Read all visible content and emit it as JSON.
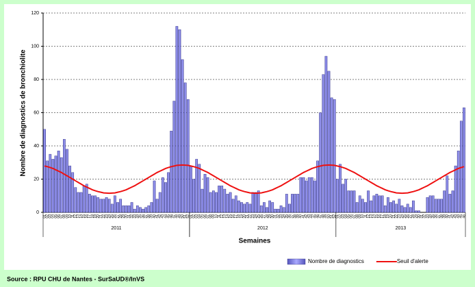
{
  "chart_data": {
    "type": "bar",
    "y_axis_label": "Nombre de diagnostics de bronchiolite",
    "x_axis_label": "Semaines",
    "source": "Source : RPU CHU de Nantes - SurSaUD®/InVS",
    "years": [
      "2011",
      "2012",
      "2013"
    ],
    "categories": [
      "01",
      "02",
      "03",
      "04",
      "05",
      "06",
      "07",
      "08",
      "09",
      "10",
      "11",
      "12",
      "13",
      "14",
      "15",
      "16",
      "17",
      "18",
      "19",
      "20",
      "21",
      "22",
      "23",
      "24",
      "25",
      "26",
      "27",
      "28",
      "29",
      "30",
      "31",
      "32",
      "33",
      "34",
      "35",
      "36",
      "37",
      "38",
      "39",
      "40",
      "41",
      "42",
      "43",
      "44",
      "45",
      "46",
      "47",
      "48",
      "49",
      "50",
      "51",
      "52",
      "01",
      "02",
      "03",
      "04",
      "05",
      "06",
      "07",
      "08",
      "09",
      "10",
      "11",
      "12",
      "13",
      "14",
      "15",
      "16",
      "17",
      "18",
      "19",
      "20",
      "21",
      "22",
      "23",
      "24",
      "25",
      "26",
      "27",
      "28",
      "29",
      "30",
      "31",
      "32",
      "33",
      "34",
      "35",
      "36",
      "37",
      "38",
      "39",
      "40",
      "41",
      "42",
      "43",
      "44",
      "45",
      "46",
      "47",
      "48",
      "49",
      "50",
      "51",
      "52",
      "01",
      "02",
      "03",
      "04",
      "05",
      "06",
      "07",
      "08",
      "09",
      "10",
      "11",
      "12",
      "13",
      "14",
      "15",
      "16",
      "17",
      "18",
      "19",
      "20",
      "21",
      "22",
      "23",
      "24",
      "25",
      "26",
      "27",
      "28",
      "29",
      "30",
      "31",
      "32",
      "33",
      "34",
      "35",
      "36",
      "37",
      "38",
      "39",
      "40",
      "41",
      "42",
      "43",
      "44",
      "45",
      "46"
    ],
    "series": [
      {
        "name": "Nombre de diagnostics",
        "type": "bar",
        "color": "#9999ee",
        "values": [
          50,
          31,
          35,
          32,
          34,
          37,
          33,
          44,
          38,
          28,
          24,
          15,
          12,
          12,
          16,
          17,
          11,
          10,
          10,
          9,
          8,
          8,
          9,
          8,
          5,
          10,
          6,
          8,
          4,
          4,
          4,
          6,
          2,
          4,
          3,
          2,
          3,
          4,
          6,
          19,
          8,
          12,
          21,
          18,
          24,
          49,
          67,
          112,
          110,
          92,
          78,
          68,
          28,
          20,
          32,
          29,
          14,
          23,
          21,
          12,
          13,
          12,
          16,
          16,
          14,
          11,
          12,
          8,
          10,
          7,
          6,
          5,
          6,
          5,
          12,
          12,
          13,
          4,
          6,
          3,
          7,
          6,
          2,
          2,
          4,
          3,
          11,
          5,
          11,
          11,
          11,
          21,
          21,
          19,
          21,
          21,
          19,
          31,
          60,
          83,
          94,
          85,
          69,
          68,
          20,
          29,
          17,
          20,
          13,
          13,
          13,
          6,
          10,
          8,
          6,
          13,
          7,
          10,
          11,
          10,
          10,
          4,
          9,
          6,
          7,
          5,
          8,
          4,
          3,
          5,
          3,
          7,
          1,
          1,
          0,
          0,
          9,
          10,
          10,
          8,
          8,
          8,
          13,
          22,
          11,
          13,
          28,
          37,
          55,
          63
        ]
      },
      {
        "name": "Seuil d'alerte",
        "type": "line",
        "color": "#ee1111",
        "values": [
          27.9,
          27.5,
          27.0,
          26.4,
          25.6,
          24.8,
          24.0,
          23.0,
          22.0,
          21.0,
          20.0,
          19.0,
          18.0,
          17.0,
          16.0,
          15.2,
          14.4,
          13.6,
          13.0,
          12.5,
          12.1,
          11.7,
          11.6,
          11.5,
          11.6,
          11.7,
          12.1,
          12.5,
          13.0,
          13.6,
          14.4,
          15.2,
          16.0,
          17.0,
          18.0,
          19.0,
          20.0,
          21.0,
          22.0,
          23.0,
          24.0,
          24.8,
          25.6,
          26.4,
          27.0,
          27.5,
          27.9,
          28.3,
          28.4,
          28.5,
          28.4,
          28.3,
          27.9,
          27.5,
          27.0,
          26.4,
          25.6,
          24.8,
          24.0,
          23.0,
          22.0,
          21.0,
          20.0,
          19.0,
          18.0,
          17.0,
          16.0,
          15.2,
          14.4,
          13.6,
          13.0,
          12.5,
          12.1,
          11.7,
          11.6,
          11.5,
          11.6,
          11.7,
          12.1,
          12.5,
          13.0,
          13.6,
          14.4,
          15.2,
          16.0,
          17.0,
          18.0,
          19.0,
          20.0,
          21.0,
          22.0,
          23.0,
          24.0,
          24.8,
          25.6,
          26.4,
          27.0,
          27.5,
          27.9,
          28.3,
          28.4,
          28.5,
          28.4,
          28.3,
          27.9,
          27.5,
          27.0,
          26.4,
          25.6,
          24.8,
          24.0,
          23.0,
          22.0,
          21.0,
          20.0,
          19.0,
          18.0,
          17.0,
          16.0,
          15.2,
          14.4,
          13.6,
          13.0,
          12.5,
          12.1,
          11.7,
          11.6,
          11.5,
          11.6,
          11.7,
          12.1,
          12.5,
          13.0,
          13.6,
          14.4,
          15.2,
          16.0,
          17.0,
          18.0,
          19.0,
          20.0,
          21.0,
          22.0,
          23.0,
          24.0,
          24.8,
          25.6,
          26.4,
          27.0,
          27.5
        ]
      }
    ],
    "ylim": [
      0,
      120
    ],
    "yticks": [
      0,
      20,
      40,
      60,
      80,
      100,
      120
    ],
    "grid": true,
    "legend": "bottom-right"
  }
}
